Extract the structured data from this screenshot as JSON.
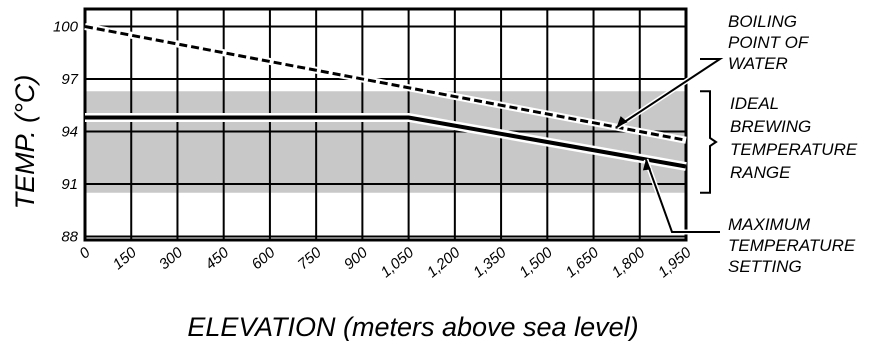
{
  "chart_data": {
    "type": "line",
    "xlabel": "ELEVATION (meters above sea level)",
    "ylabel": "TEMP. (°C)",
    "xlim": [
      0,
      1950
    ],
    "ylim": [
      87.8,
      101
    ],
    "x_ticks": [
      "0",
      "150",
      "300",
      "450",
      "600",
      "750",
      "900",
      "1,050",
      "1,200",
      "1,350",
      "1,500",
      "1,650",
      "1,800",
      "1,950"
    ],
    "y_ticks": [
      {
        "value": 100,
        "label": "100"
      },
      {
        "value": 97,
        "label": "97"
      },
      {
        "value": 94,
        "label": "94"
      },
      {
        "value": 91,
        "label": "91"
      },
      {
        "value": 88,
        "label": "88"
      }
    ],
    "grid": true,
    "band": {
      "name": "IDEAL BREWING TEMPERATURE RANGE",
      "y_low": 90.5,
      "y_high": 96.3,
      "color": "#c8c8c8"
    },
    "series": [
      {
        "name": "BOILING POINT OF WATER",
        "style": "dashed",
        "x": [
          0,
          1950
        ],
        "y": [
          100,
          93.5
        ]
      },
      {
        "name": "MAXIMUM TEMPERATURE SETTING",
        "style": "solid",
        "x": [
          0,
          1050,
          1950
        ],
        "y": [
          94.8,
          94.8,
          92.0
        ]
      }
    ],
    "annotations": [
      {
        "lines": [
          "BOILING",
          "POINT OF",
          "WATER"
        ]
      },
      {
        "lines": [
          "IDEAL",
          "BREWING",
          "TEMPERATURE",
          "RANGE"
        ]
      },
      {
        "lines": [
          "MAXIMUM",
          "TEMPERATURE",
          "SETTING"
        ]
      }
    ]
  }
}
